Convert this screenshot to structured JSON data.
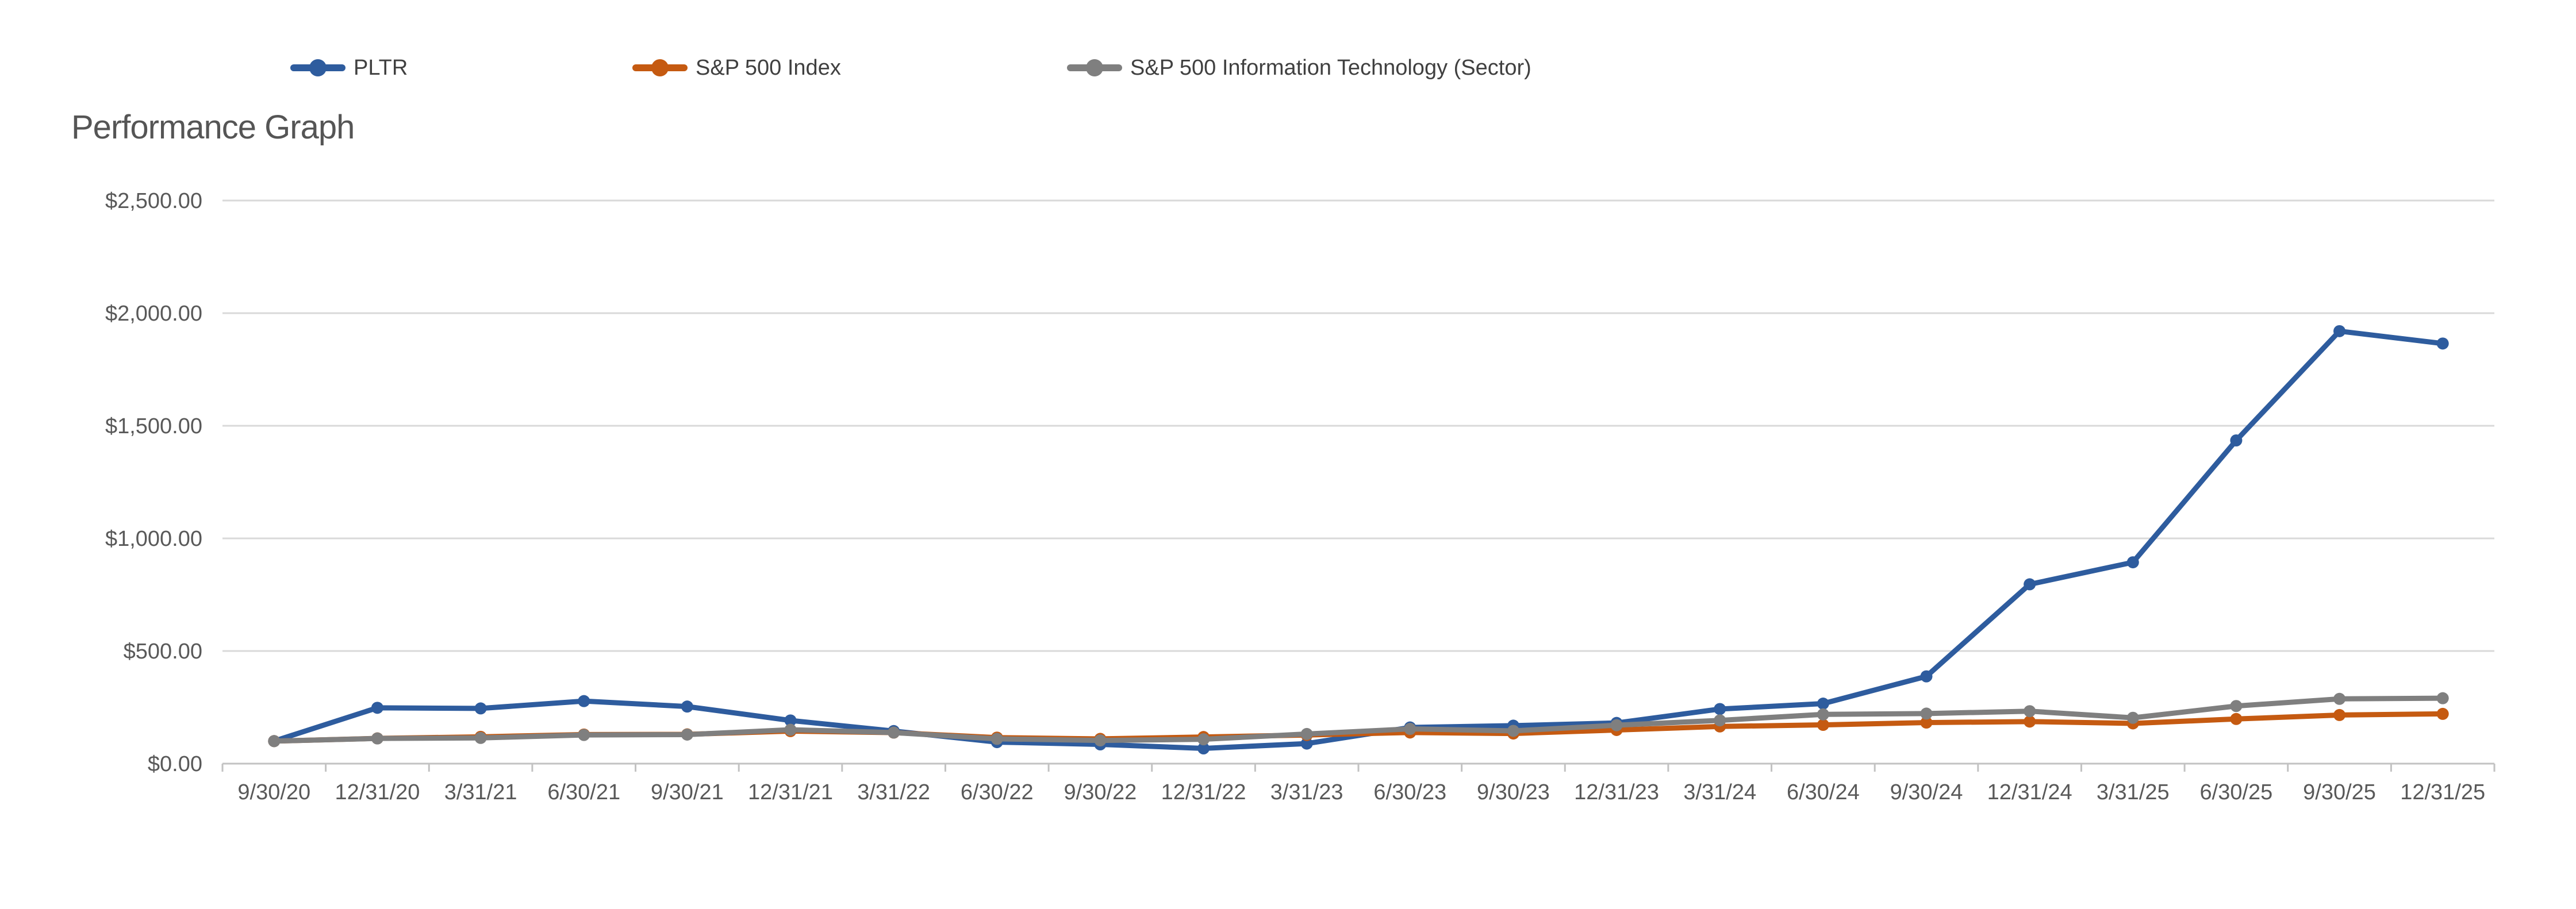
{
  "chart_data": {
    "type": "line",
    "title": "Performance Graph",
    "categories": [
      "9/30/20",
      "12/31/20",
      "3/31/21",
      "6/30/21",
      "9/30/21",
      "12/31/21",
      "3/31/22",
      "6/30/22",
      "9/30/22",
      "12/31/22",
      "3/31/23",
      "6/30/23",
      "9/30/23",
      "12/31/23",
      "3/31/24",
      "6/30/24",
      "9/30/24",
      "12/31/24",
      "3/31/25",
      "6/30/25",
      "9/30/25",
      "12/31/25"
    ],
    "series": [
      {
        "name": "PLTR",
        "color": "#2E5C9E",
        "values": [
          100.0,
          247.89,
          245.16,
          277.68,
          253.47,
          191.68,
          144.63,
          95.47,
          85.47,
          67.58,
          89.05,
          160.63,
          168.53,
          180.74,
          242.42,
          266.53,
          387.47,
          796.11,
          893.89,
          1434.95,
          1920.11,
          1865.17
        ]
      },
      {
        "name": "S&P 500 Index",
        "color": "#C55A11",
        "values": [
          100.0,
          112.15,
          119.07,
          129.25,
          130.0,
          144.34,
          137.7,
          115.53,
          109.89,
          118.2,
          127.06,
          138.17,
          133.65,
          149.27,
          165.03,
          172.1,
          182.24,
          186.63,
          178.66,
          198.21,
          215.8,
          220.94
        ]
      },
      {
        "name": "S&P 500 Information Technology (Sector)",
        "color": "#7F7F7F",
        "values": [
          100.0,
          111.8,
          114.02,
          127.2,
          128.9,
          150.41,
          137.84,
          109.94,
          103.11,
          107.99,
          131.56,
          154.19,
          145.49,
          170.47,
          192.1,
          218.65,
          222.17,
          232.92,
          203.46,
          255.75,
          287.48,
          290.4
        ]
      }
    ],
    "y_ticks": [
      {
        "label": "$0.00",
        "value": 0
      },
      {
        "label": "$500.00",
        "value": 500
      },
      {
        "label": "$1,000.00",
        "value": 1000
      },
      {
        "label": "$1,500.00",
        "value": 1500
      },
      {
        "label": "$2,000.00",
        "value": 2000
      },
      {
        "label": "$2,500.00",
        "value": 2500
      }
    ],
    "ylim": [
      0,
      2500
    ],
    "grid": true,
    "legend_position": "top",
    "marker": "circle",
    "xlabel": "",
    "ylabel": ""
  },
  "colors": {
    "background": "#FFFFFF",
    "gridline": "#D9D9D9",
    "axis_line": "#C2C2C2",
    "tick_text": "#595959",
    "title_text": "#555555",
    "legend_text": "#404040"
  }
}
